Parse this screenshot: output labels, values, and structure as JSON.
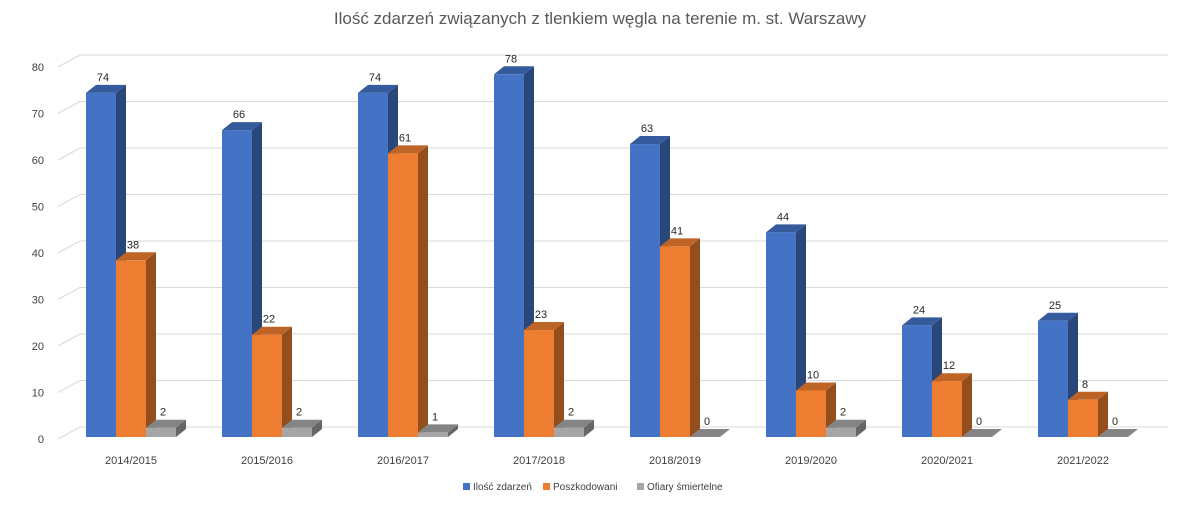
{
  "chart_data": {
    "type": "bar",
    "title": "Ilość zdarzeń związanych z tlenkiem węgla na terenie m. st. Warszawy",
    "xlabel": "",
    "ylabel": "",
    "ylim": [
      0,
      80
    ],
    "yticks": [
      0,
      10,
      20,
      30,
      40,
      50,
      60,
      70,
      80
    ],
    "grid": true,
    "legend_position": "bottom",
    "categories": [
      "2014/2015",
      "2015/2016",
      "2016/2017",
      "2017/2018",
      "2018/2019",
      "2019/2020",
      "2020/2021",
      "2021/2022"
    ],
    "series": [
      {
        "name": "Ilość zdarzeń",
        "color": "#4472c4",
        "values": [
          74,
          66,
          74,
          78,
          63,
          44,
          24,
          25
        ]
      },
      {
        "name": "Poszkodowani",
        "color": "#ed7d31",
        "values": [
          38,
          22,
          61,
          23,
          41,
          10,
          12,
          8
        ]
      },
      {
        "name": "Ofiary śmiertelne",
        "color": "#a5a5a5",
        "values": [
          2,
          2,
          1,
          2,
          0,
          2,
          0,
          0
        ]
      }
    ]
  }
}
